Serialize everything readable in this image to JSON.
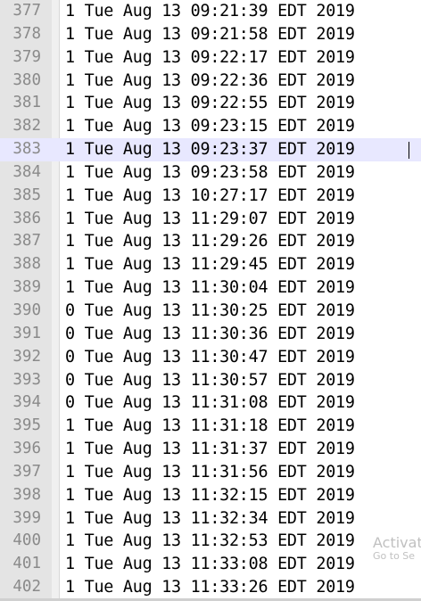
{
  "editor": {
    "current_line_index": 6,
    "lines": [
      {
        "number": "377",
        "text": "1 Tue Aug 13 09:21:39 EDT 2019"
      },
      {
        "number": "378",
        "text": "1 Tue Aug 13 09:21:58 EDT 2019"
      },
      {
        "number": "379",
        "text": "1 Tue Aug 13 09:22:17 EDT 2019"
      },
      {
        "number": "380",
        "text": "1 Tue Aug 13 09:22:36 EDT 2019"
      },
      {
        "number": "381",
        "text": "1 Tue Aug 13 09:22:55 EDT 2019"
      },
      {
        "number": "382",
        "text": "1 Tue Aug 13 09:23:15 EDT 2019"
      },
      {
        "number": "383",
        "text": "1 Tue Aug 13 09:23:37 EDT 2019"
      },
      {
        "number": "384",
        "text": "1 Tue Aug 13 09:23:58 EDT 2019"
      },
      {
        "number": "385",
        "text": "1 Tue Aug 13 10:27:17 EDT 2019"
      },
      {
        "number": "386",
        "text": "1 Tue Aug 13 11:29:07 EDT 2019"
      },
      {
        "number": "387",
        "text": "1 Tue Aug 13 11:29:26 EDT 2019"
      },
      {
        "number": "388",
        "text": "1 Tue Aug 13 11:29:45 EDT 2019"
      },
      {
        "number": "389",
        "text": "1 Tue Aug 13 11:30:04 EDT 2019"
      },
      {
        "number": "390",
        "text": "0 Tue Aug 13 11:30:25 EDT 2019"
      },
      {
        "number": "391",
        "text": "0 Tue Aug 13 11:30:36 EDT 2019"
      },
      {
        "number": "392",
        "text": "0 Tue Aug 13 11:30:47 EDT 2019"
      },
      {
        "number": "393",
        "text": "0 Tue Aug 13 11:30:57 EDT 2019"
      },
      {
        "number": "394",
        "text": "0 Tue Aug 13 11:31:08 EDT 2019"
      },
      {
        "number": "395",
        "text": "1 Tue Aug 13 11:31:18 EDT 2019"
      },
      {
        "number": "396",
        "text": "1 Tue Aug 13 11:31:37 EDT 2019"
      },
      {
        "number": "397",
        "text": "1 Tue Aug 13 11:31:56 EDT 2019"
      },
      {
        "number": "398",
        "text": "1 Tue Aug 13 11:32:15 EDT 2019"
      },
      {
        "number": "399",
        "text": "1 Tue Aug 13 11:32:34 EDT 2019"
      },
      {
        "number": "400",
        "text": "1 Tue Aug 13 11:32:53 EDT 2019"
      },
      {
        "number": "401",
        "text": "1 Tue Aug 13 11:33:08 EDT 2019"
      },
      {
        "number": "402",
        "text": "1 Tue Aug 13 11:33:26 EDT 2019"
      }
    ]
  },
  "watermark": {
    "line1": "Activat",
    "line2": "Go to Se"
  },
  "colors": {
    "gutter_background": "#e4e4e4",
    "line_number_text": "#8a8a8a",
    "current_line_highlight": "#e8e8ff",
    "text": "#000000"
  }
}
